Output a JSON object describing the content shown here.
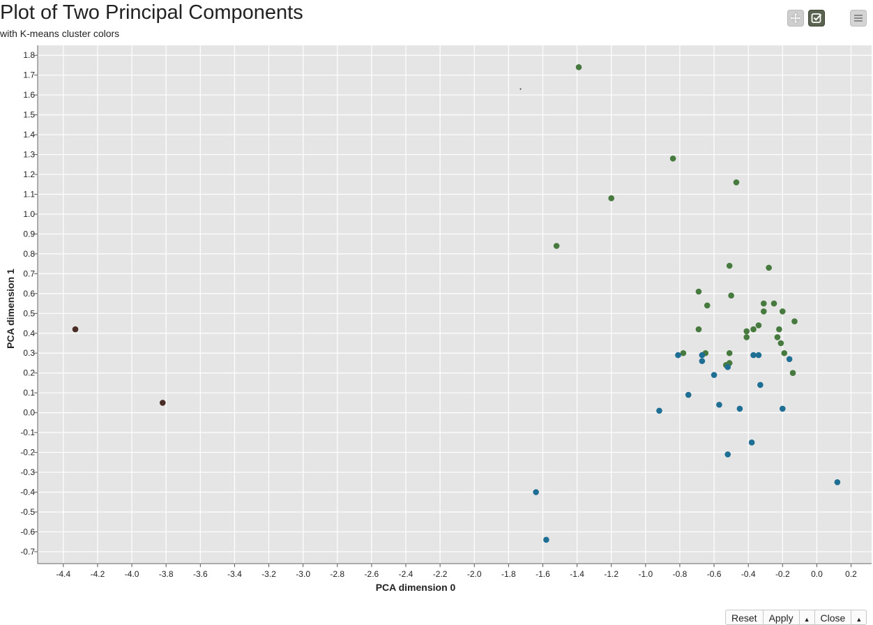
{
  "chart_data": {
    "type": "scatter",
    "title": "Plot of Two Principal Components",
    "subtitle": "with K-means cluster colors",
    "xlabel": "PCA dimension 0",
    "ylabel": "PCA dimension 1",
    "xlim": [
      -4.55,
      0.32
    ],
    "ylim": [
      -0.76,
      1.85
    ],
    "xticks": [
      -4.4,
      -4.2,
      -4.0,
      -3.8,
      -3.6,
      -3.4,
      -3.2,
      -3.0,
      -2.8,
      -2.6,
      -2.4,
      -2.2,
      -2.0,
      -1.8,
      -1.6,
      -1.4,
      -1.2,
      -1.0,
      -0.8,
      -0.6,
      -0.4,
      -0.2,
      0.0,
      0.2
    ],
    "xtick_labels": [
      "-4.4",
      "-4.2",
      "-4.0",
      "-3.8",
      "-3.6",
      "-3.4",
      "-3.2",
      "-3.0",
      "-2.8",
      "-2.6",
      "-2.4",
      "-2.2",
      "-2.0",
      "-1.8",
      "-1.6",
      "-1.4",
      "-1.2",
      "-1.0",
      "-0.8",
      "-0.6",
      "-0.4",
      "-0.2",
      "0.0",
      "0.2"
    ],
    "yticks": [
      1.8,
      1.7,
      1.6,
      1.5,
      1.4,
      1.3,
      1.2,
      1.1,
      1.0,
      0.9,
      0.8,
      0.7,
      0.6,
      0.5,
      0.4,
      0.3,
      0.2,
      0.1,
      0.0,
      -0.1,
      -0.2,
      -0.3,
      -0.4,
      -0.5,
      -0.6,
      -0.7
    ],
    "ytick_labels": [
      "1.8",
      "1.7",
      "1.6",
      "1.5",
      "1.4",
      "1.3",
      "1.2",
      "1.1",
      "1.0",
      "0.9",
      "0.8",
      "0.7",
      "0.6",
      "0.5",
      "0.4",
      "0.3",
      "0.2",
      "0.1",
      "0.0",
      "-0.1",
      "-0.2",
      "-0.3",
      "-0.4",
      "-0.5",
      "-0.6",
      "-0.7"
    ],
    "grid": true,
    "background_color": "#e5e5e5",
    "grid_color": "#ffffff",
    "series": [
      {
        "color": "#477a3e",
        "points": [
          [
            -1.39,
            1.74
          ],
          [
            -0.84,
            1.28
          ],
          [
            -0.47,
            1.16
          ],
          [
            -1.2,
            1.08
          ],
          [
            -1.52,
            0.84
          ],
          [
            -0.51,
            0.74
          ],
          [
            -0.28,
            0.73
          ],
          [
            -0.69,
            0.61
          ],
          [
            -0.5,
            0.59
          ],
          [
            -0.64,
            0.54
          ],
          [
            -0.31,
            0.55
          ],
          [
            -0.25,
            0.55
          ],
          [
            -0.31,
            0.51
          ],
          [
            -0.2,
            0.51
          ],
          [
            -0.13,
            0.46
          ],
          [
            -0.34,
            0.44
          ],
          [
            -0.37,
            0.42
          ],
          [
            -0.41,
            0.41
          ],
          [
            -0.69,
            0.42
          ],
          [
            -0.22,
            0.42
          ],
          [
            -0.41,
            0.38
          ],
          [
            -0.23,
            0.38
          ],
          [
            -0.21,
            0.35
          ],
          [
            -0.78,
            0.3
          ],
          [
            -0.65,
            0.3
          ],
          [
            -0.51,
            0.3
          ],
          [
            -0.19,
            0.3
          ],
          [
            -0.53,
            0.24
          ],
          [
            -0.51,
            0.25
          ],
          [
            -0.14,
            0.2
          ]
        ]
      },
      {
        "color": "#1f6e93",
        "points": [
          [
            -0.81,
            0.29
          ],
          [
            -0.67,
            0.29
          ],
          [
            -0.67,
            0.26
          ],
          [
            -0.37,
            0.29
          ],
          [
            -0.34,
            0.29
          ],
          [
            -0.16,
            0.27
          ],
          [
            -0.52,
            0.23
          ],
          [
            -0.6,
            0.19
          ],
          [
            -0.33,
            0.14
          ],
          [
            -0.75,
            0.09
          ],
          [
            -0.57,
            0.04
          ],
          [
            -0.45,
            0.02
          ],
          [
            -0.2,
            0.02
          ],
          [
            -0.92,
            0.01
          ],
          [
            -0.38,
            -0.15
          ],
          [
            -0.52,
            -0.21
          ],
          [
            0.12,
            -0.35
          ],
          [
            -1.64,
            -0.4
          ],
          [
            -1.58,
            -0.64
          ]
        ]
      },
      {
        "color": "#4a2e26",
        "points": [
          [
            -4.33,
            0.42
          ],
          [
            -3.82,
            0.05
          ]
        ]
      },
      {
        "color": "#333333",
        "marker": "tiny",
        "points": [
          [
            -1.73,
            1.63
          ]
        ]
      }
    ]
  },
  "toolbar": {
    "buttons": [
      {
        "name": "move",
        "icon": "move-arrows-icon"
      },
      {
        "name": "select",
        "icon": "checkbox-icon"
      },
      {
        "name": "menu",
        "icon": "hamburger-icon"
      }
    ]
  },
  "bottom_bar": {
    "reset_label": "Reset",
    "apply_label": "Apply",
    "close_label": "Close",
    "caret": "▲"
  }
}
